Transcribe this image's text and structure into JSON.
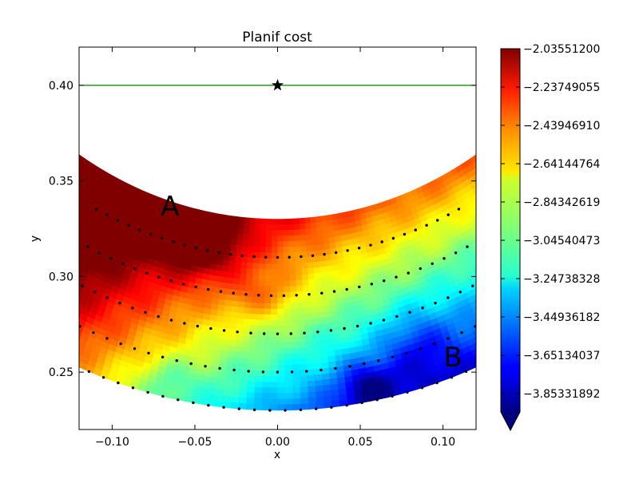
{
  "chart_data": {
    "type": "heatmap",
    "title": "Planif cost",
    "xlabel": "x",
    "ylabel": "y",
    "xlim": [
      -0.12,
      0.12
    ],
    "ylim": [
      0.22,
      0.42
    ],
    "xticks": [
      {
        "value": -0.1,
        "label": "−0.10"
      },
      {
        "value": -0.05,
        "label": "−0.05"
      },
      {
        "value": 0.0,
        "label": "0.00"
      },
      {
        "value": 0.05,
        "label": "0.05"
      },
      {
        "value": 0.1,
        "label": "0.10"
      }
    ],
    "yticks": [
      {
        "value": 0.25,
        "label": "0.25"
      },
      {
        "value": 0.3,
        "label": "0.30"
      },
      {
        "value": 0.35,
        "label": "0.35"
      },
      {
        "value": 0.4,
        "label": "0.40"
      }
    ],
    "colorbar": {
      "min": -3.95,
      "max": -2.0355,
      "ticks": [
        {
          "value": -2.035512,
          "label": "−2.03551200"
        },
        {
          "value": -2.23749055,
          "label": "−2.23749055"
        },
        {
          "value": -2.4394691,
          "label": "−2.43946910"
        },
        {
          "value": -2.64144764,
          "label": "−2.64144764"
        },
        {
          "value": -2.84342619,
          "label": "−2.84342619"
        },
        {
          "value": -3.04540473,
          "label": "−3.04540473"
        },
        {
          "value": -3.24738328,
          "label": "−3.24738328"
        },
        {
          "value": -3.44936182,
          "label": "−3.44936182"
        },
        {
          "value": -3.65134037,
          "label": "−3.65134037"
        },
        {
          "value": -3.85331892,
          "label": "−3.85331892"
        }
      ],
      "colormap": "jet",
      "extend": "min"
    },
    "field": {
      "radius_range": [
        0.23,
        0.33
      ],
      "angle_range_deg": [
        -37,
        37
      ],
      "description": "cost over an annular sector centred at (0, 0.56)"
    },
    "arc_centre": [
      0,
      0.56
    ],
    "dotted_arcs": [
      {
        "radius": 0.25,
        "angle_range_deg": [
          -26,
          26
        ]
      },
      {
        "radius": 0.27,
        "angle_range_deg": [
          -30,
          30
        ]
      },
      {
        "radius": 0.29,
        "angle_range_deg": [
          -32,
          32
        ]
      },
      {
        "radius": 0.31,
        "angle_range_deg": [
          -34,
          34
        ]
      },
      {
        "radius": 0.33,
        "angle_range_deg": [
          -38,
          38
        ]
      }
    ],
    "hline": {
      "y": 0.4,
      "color": "#008000"
    },
    "star": {
      "x": 0.0,
      "y": 0.4,
      "color": "#000000"
    },
    "annotations": [
      {
        "text": "A",
        "x": -0.065,
        "y": 0.337
      },
      {
        "text": "B",
        "x": 0.106,
        "y": 0.258
      }
    ]
  }
}
